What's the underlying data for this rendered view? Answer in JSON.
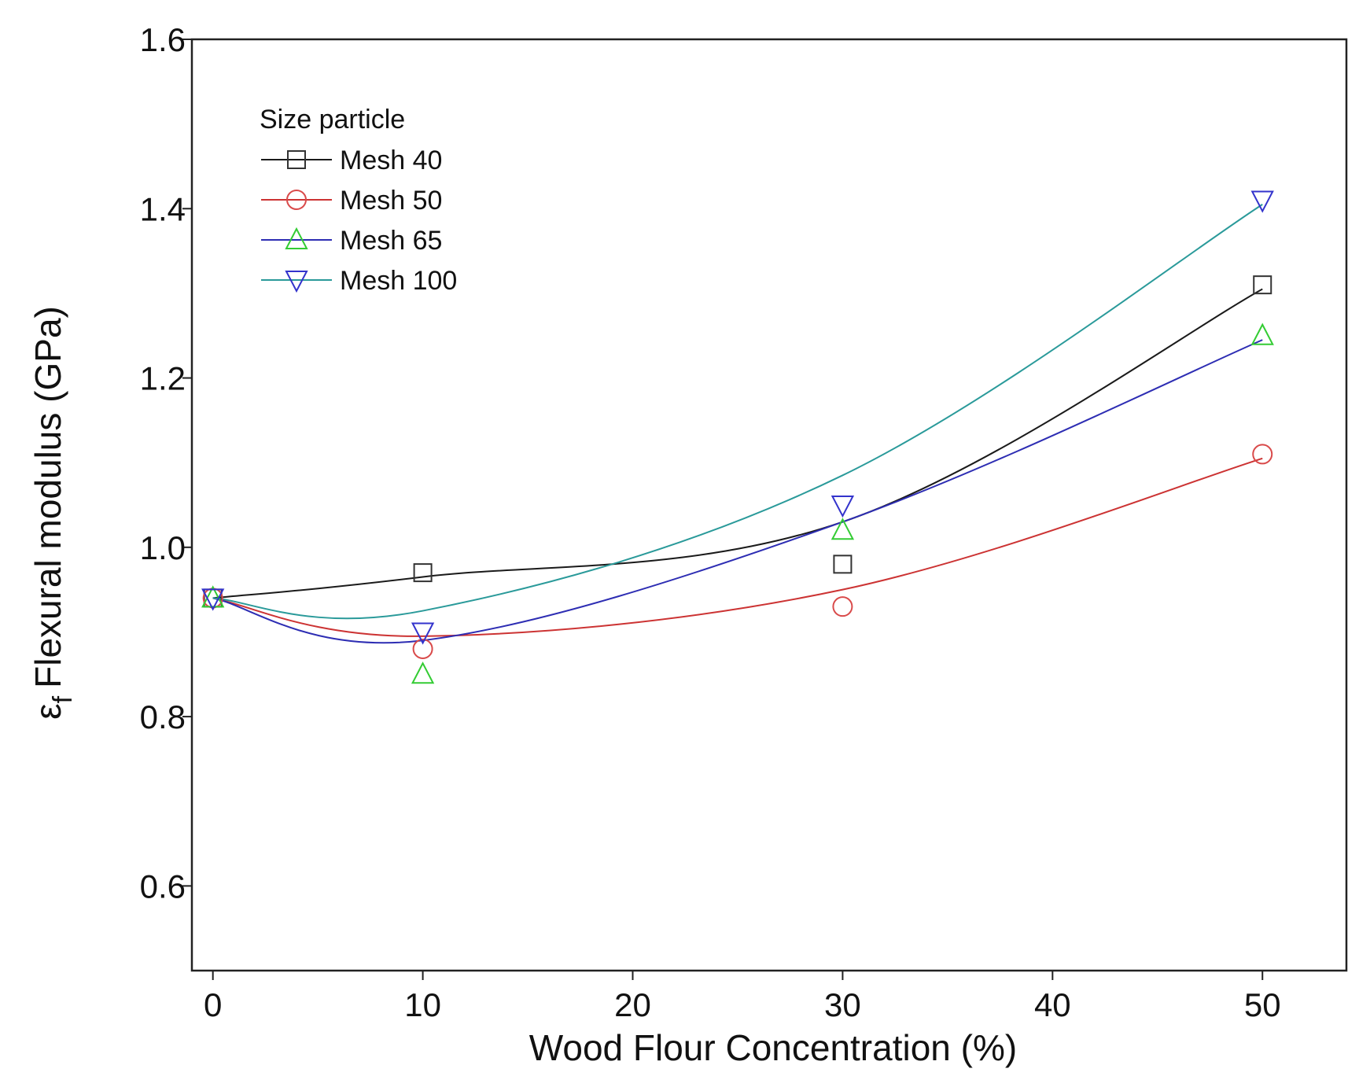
{
  "chart_data": {
    "type": "line",
    "title": "",
    "xlabel": "Wood Flour Concentration (%)",
    "ylabel_symbol": "ε",
    "ylabel_subscript": "f",
    "ylabel_text": "Flexural modulus (GPa)",
    "xlim": [
      -1,
      54
    ],
    "ylim": [
      0.5,
      1.6
    ],
    "xticks": [
      0,
      10,
      20,
      30,
      40,
      50
    ],
    "xtick_labels": [
      "0",
      "10",
      "20",
      "30",
      "40",
      "50"
    ],
    "yticks": [
      0.6,
      0.8,
      1.0,
      1.2,
      1.4,
      1.6
    ],
    "ytick_labels": [
      "0.6",
      "0.8",
      "1.0",
      "1.2",
      "1.4",
      "1.6"
    ],
    "grid": false,
    "legend": {
      "title": "Size particle",
      "placement": "top-left"
    },
    "series": [
      {
        "name": "Mesh 40",
        "line_color": "#1a1a1a",
        "marker": "square",
        "marker_color": "#333333",
        "x": [
          0,
          10,
          30,
          50
        ],
        "points": [
          0.94,
          0.97,
          0.98,
          1.31
        ],
        "fit": [
          0.94,
          0.965,
          1.03,
          1.305
        ]
      },
      {
        "name": "Mesh 50",
        "line_color": "#cc3333",
        "marker": "circle",
        "marker_color": "#d94a4a",
        "x": [
          0,
          10,
          30,
          50
        ],
        "points": [
          0.94,
          0.88,
          0.93,
          1.11
        ],
        "fit": [
          0.94,
          0.895,
          0.95,
          1.105
        ]
      },
      {
        "name": "Mesh 65",
        "line_color": "#2d2db3",
        "marker": "triangle-up",
        "marker_color": "#33cc33",
        "x": [
          0,
          10,
          30,
          50
        ],
        "points": [
          0.94,
          0.85,
          1.02,
          1.25
        ],
        "fit": [
          0.94,
          0.89,
          1.03,
          1.245
        ]
      },
      {
        "name": "Mesh 100",
        "line_color": "#2a9a9a",
        "marker": "triangle-down",
        "marker_color": "#3333cc",
        "x": [
          0,
          10,
          30,
          50
        ],
        "points": [
          0.94,
          0.9,
          1.05,
          1.41
        ],
        "fit": [
          0.94,
          0.925,
          1.085,
          1.405
        ]
      }
    ]
  }
}
